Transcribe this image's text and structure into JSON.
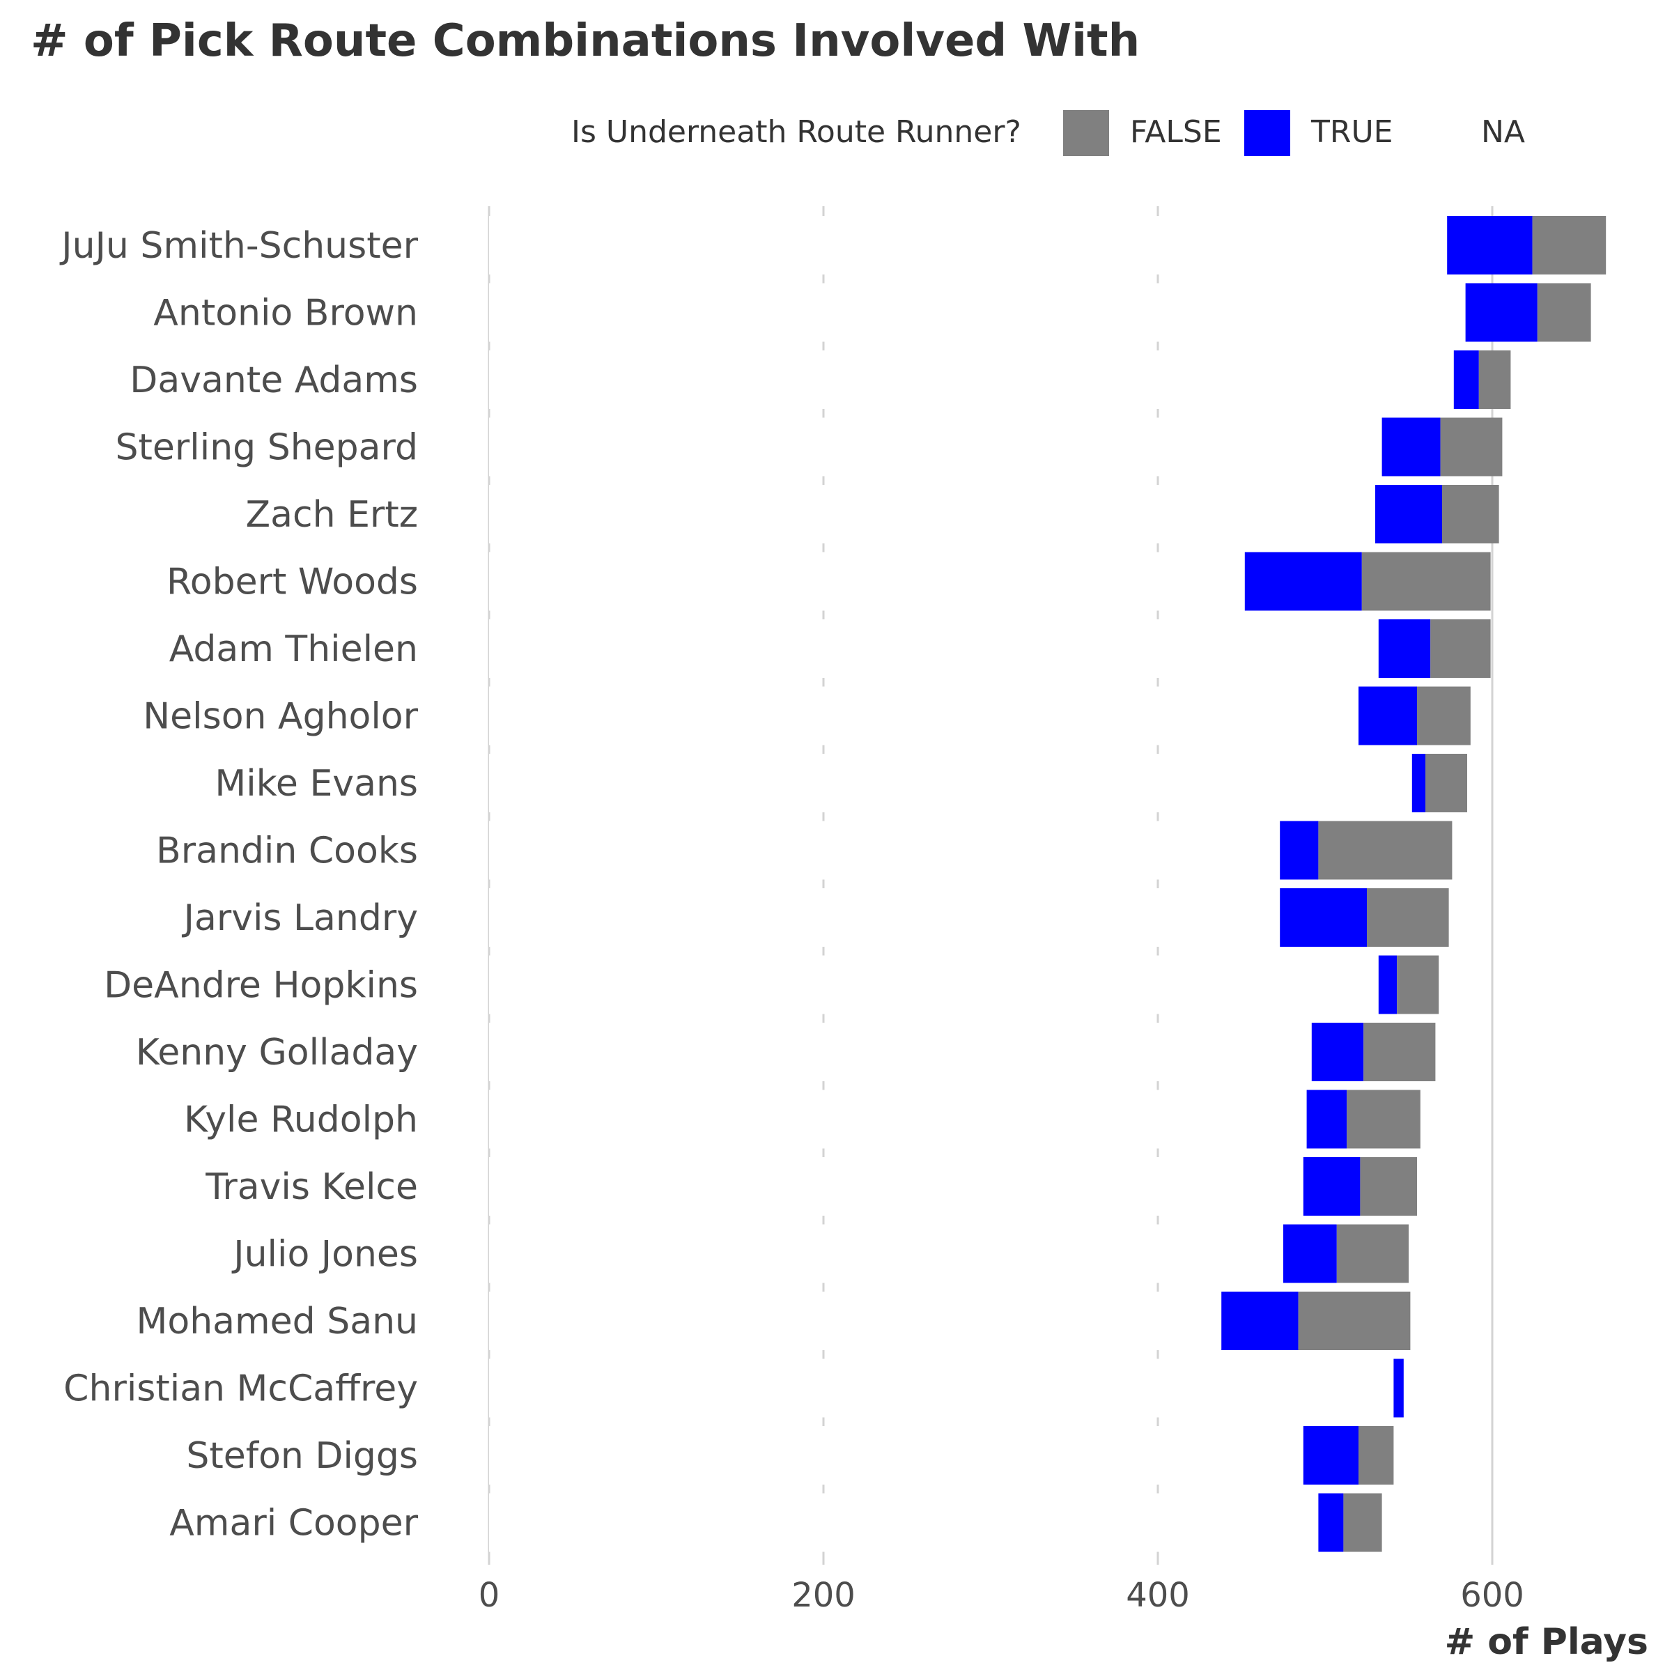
{
  "chart_data": {
    "type": "bar",
    "orientation": "horizontal",
    "stacked": true,
    "title": "# of Pick Route Combinations Involved With",
    "xlabel": "# of Plays",
    "ylabel": "",
    "xlim": [
      0,
      680
    ],
    "xticks": [
      0,
      200,
      400,
      600
    ],
    "grid": "vertical major gridlines",
    "legend": {
      "title": "Is Underneath Route Runner?",
      "position": "top",
      "entries": [
        {
          "label": "FALSE",
          "color": "#808080"
        },
        {
          "label": "TRUE",
          "color": "#0000ff"
        },
        {
          "label": "NA",
          "color": "#ffffff"
        }
      ]
    },
    "categories": [
      "JuJu Smith-Schuster",
      "Antonio Brown",
      "Davante Adams",
      "Sterling Shepard",
      "Zach Ertz",
      "Robert Woods",
      "Adam Thielen",
      "Nelson Agholor",
      "Mike Evans",
      "Brandin Cooks",
      "Jarvis Landry",
      "DeAndre Hopkins",
      "Kenny Golladay",
      "Kyle Rudolph",
      "Travis Kelce",
      "Julio Jones",
      "Mohamed Sanu",
      "Christian McCaffrey",
      "Stefon Diggs",
      "Amari Cooper"
    ],
    "series": [
      {
        "name": "NA",
        "color": "#ffffff",
        "values": [
          573,
          584,
          577,
          534,
          530,
          452,
          532,
          520,
          552,
          473,
          473,
          532,
          492,
          489,
          487,
          475,
          438,
          541,
          487,
          496
        ]
      },
      {
        "name": "TRUE",
        "color": "#0000ff",
        "values": [
          51,
          43,
          15,
          35,
          40,
          70,
          31,
          35,
          8,
          23,
          52,
          11,
          31,
          24,
          34,
          32,
          46,
          6,
          33,
          15
        ]
      },
      {
        "name": "FALSE",
        "color": "#808080",
        "values": [
          44,
          32,
          19,
          37,
          34,
          77,
          36,
          32,
          25,
          80,
          49,
          25,
          43,
          44,
          34,
          43,
          67,
          0,
          21,
          23
        ]
      }
    ]
  }
}
